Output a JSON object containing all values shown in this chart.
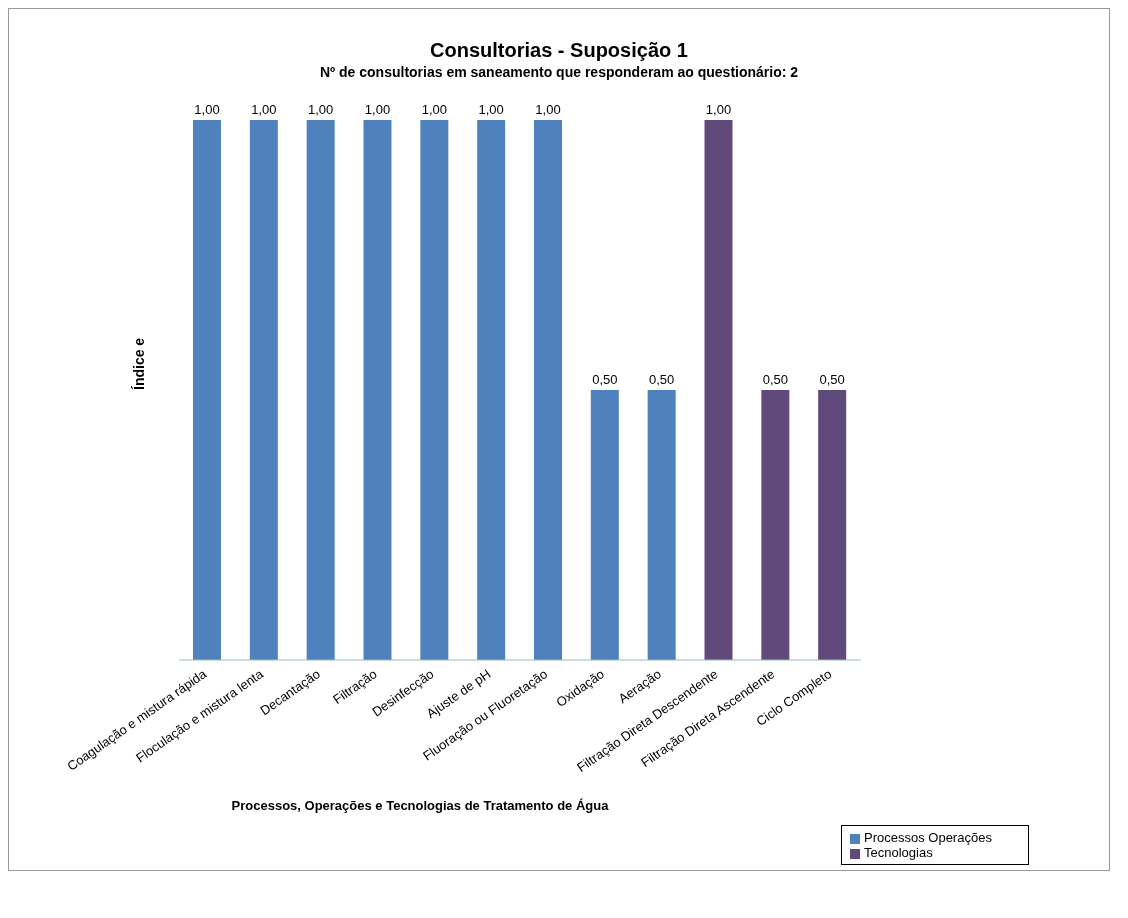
{
  "chart_data": {
    "type": "bar",
    "title": "Consultorias - Suposição 1",
    "subtitle": "Nº de consultorias em saneamento que responderam ao questionário: 2",
    "xlabel": "Processos, Operações e Tecnologias  de Tratamento de Água",
    "ylabel": "Índice e",
    "categories": [
      "Coagulação e mistura rápida",
      "Floculação e mistura lenta",
      "Decantação",
      "Filtração",
      "Desinfecção",
      "Ajuste de pH",
      "Fluoração ou Fluoretação",
      "Oxidação",
      "Aeração",
      "Filtração Direta Descendente",
      "Filtração Direta Ascendente",
      "Ciclo Completo"
    ],
    "series": [
      {
        "name": "Processos Operações",
        "color": "#4f81bd",
        "values": [
          1,
          1,
          1,
          1,
          1,
          1,
          1,
          0.5,
          0.5,
          null,
          null,
          null
        ],
        "value_labels": [
          "1,00",
          "1,00",
          "1,00",
          "1,00",
          "1,00",
          "1,00",
          "1,00",
          "0,50",
          "0,50",
          null,
          null,
          null
        ]
      },
      {
        "name": "Tecnologias",
        "color": "#604a7b",
        "values": [
          null,
          null,
          null,
          null,
          null,
          null,
          null,
          null,
          null,
          1,
          0.5,
          0.5
        ],
        "value_labels": [
          null,
          null,
          null,
          null,
          null,
          null,
          null,
          null,
          null,
          "1,00",
          "0,50",
          "0,50"
        ]
      }
    ],
    "legend": "bottom right"
  }
}
